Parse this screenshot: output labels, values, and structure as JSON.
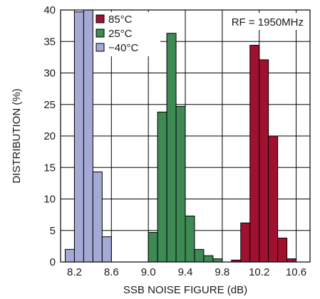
{
  "chart_data": {
    "type": "bar",
    "xlabel": "SSB NOISE FIGURE (dB)",
    "ylabel": "DISTRIBUTION (%)",
    "annotation": "RF = 1950MHz",
    "xlim": [
      8.2,
      10.7
    ],
    "ylim": [
      0,
      40
    ],
    "bin_width": 0.1,
    "x_ticks": [
      8.2,
      8.6,
      9.0,
      9.4,
      9.8,
      10.2,
      10.6
    ],
    "x_tick_labels": [
      "8.2",
      "8.6",
      "9.0",
      "9.4",
      "9.8",
      "10.2",
      "10.6"
    ],
    "y_ticks": [
      0,
      5,
      10,
      15,
      20,
      25,
      30,
      35,
      40
    ],
    "y_tick_labels": [
      "0",
      "5",
      "10",
      "15",
      "20",
      "25",
      "30",
      "35",
      "40"
    ],
    "grid": true,
    "legend_position": "top-left",
    "series": [
      {
        "name": "85°C",
        "color": "#a0102f",
        "bins": [
          {
            "x": 9.9,
            "value": 0.3
          },
          {
            "x": 10.0,
            "value": 6.2
          },
          {
            "x": 10.1,
            "value": 34.4
          },
          {
            "x": 10.2,
            "value": 32.1
          },
          {
            "x": 10.3,
            "value": 20.0
          },
          {
            "x": 10.4,
            "value": 3.8
          },
          {
            "x": 10.5,
            "value": 0.5
          }
        ]
      },
      {
        "name": "25°C",
        "color": "#3d8a55",
        "bins": [
          {
            "x": 9.0,
            "value": 4.7
          },
          {
            "x": 9.1,
            "value": 23.8
          },
          {
            "x": 9.2,
            "value": 36.3
          },
          {
            "x": 9.3,
            "value": 24.7
          },
          {
            "x": 9.4,
            "value": 7.3
          },
          {
            "x": 9.5,
            "value": 2.0
          },
          {
            "x": 9.6,
            "value": 1.0
          },
          {
            "x": 9.7,
            "value": 0.5
          }
        ]
      },
      {
        "name": "−40°C",
        "color": "#a5a9d6",
        "bins": [
          {
            "x": 8.1,
            "value": 2.0
          },
          {
            "x": 8.2,
            "value": 39.7
          },
          {
            "x": 8.3,
            "value": 40.0
          },
          {
            "x": 8.4,
            "value": 14.3
          },
          {
            "x": 8.5,
            "value": 4.0
          }
        ]
      }
    ]
  }
}
